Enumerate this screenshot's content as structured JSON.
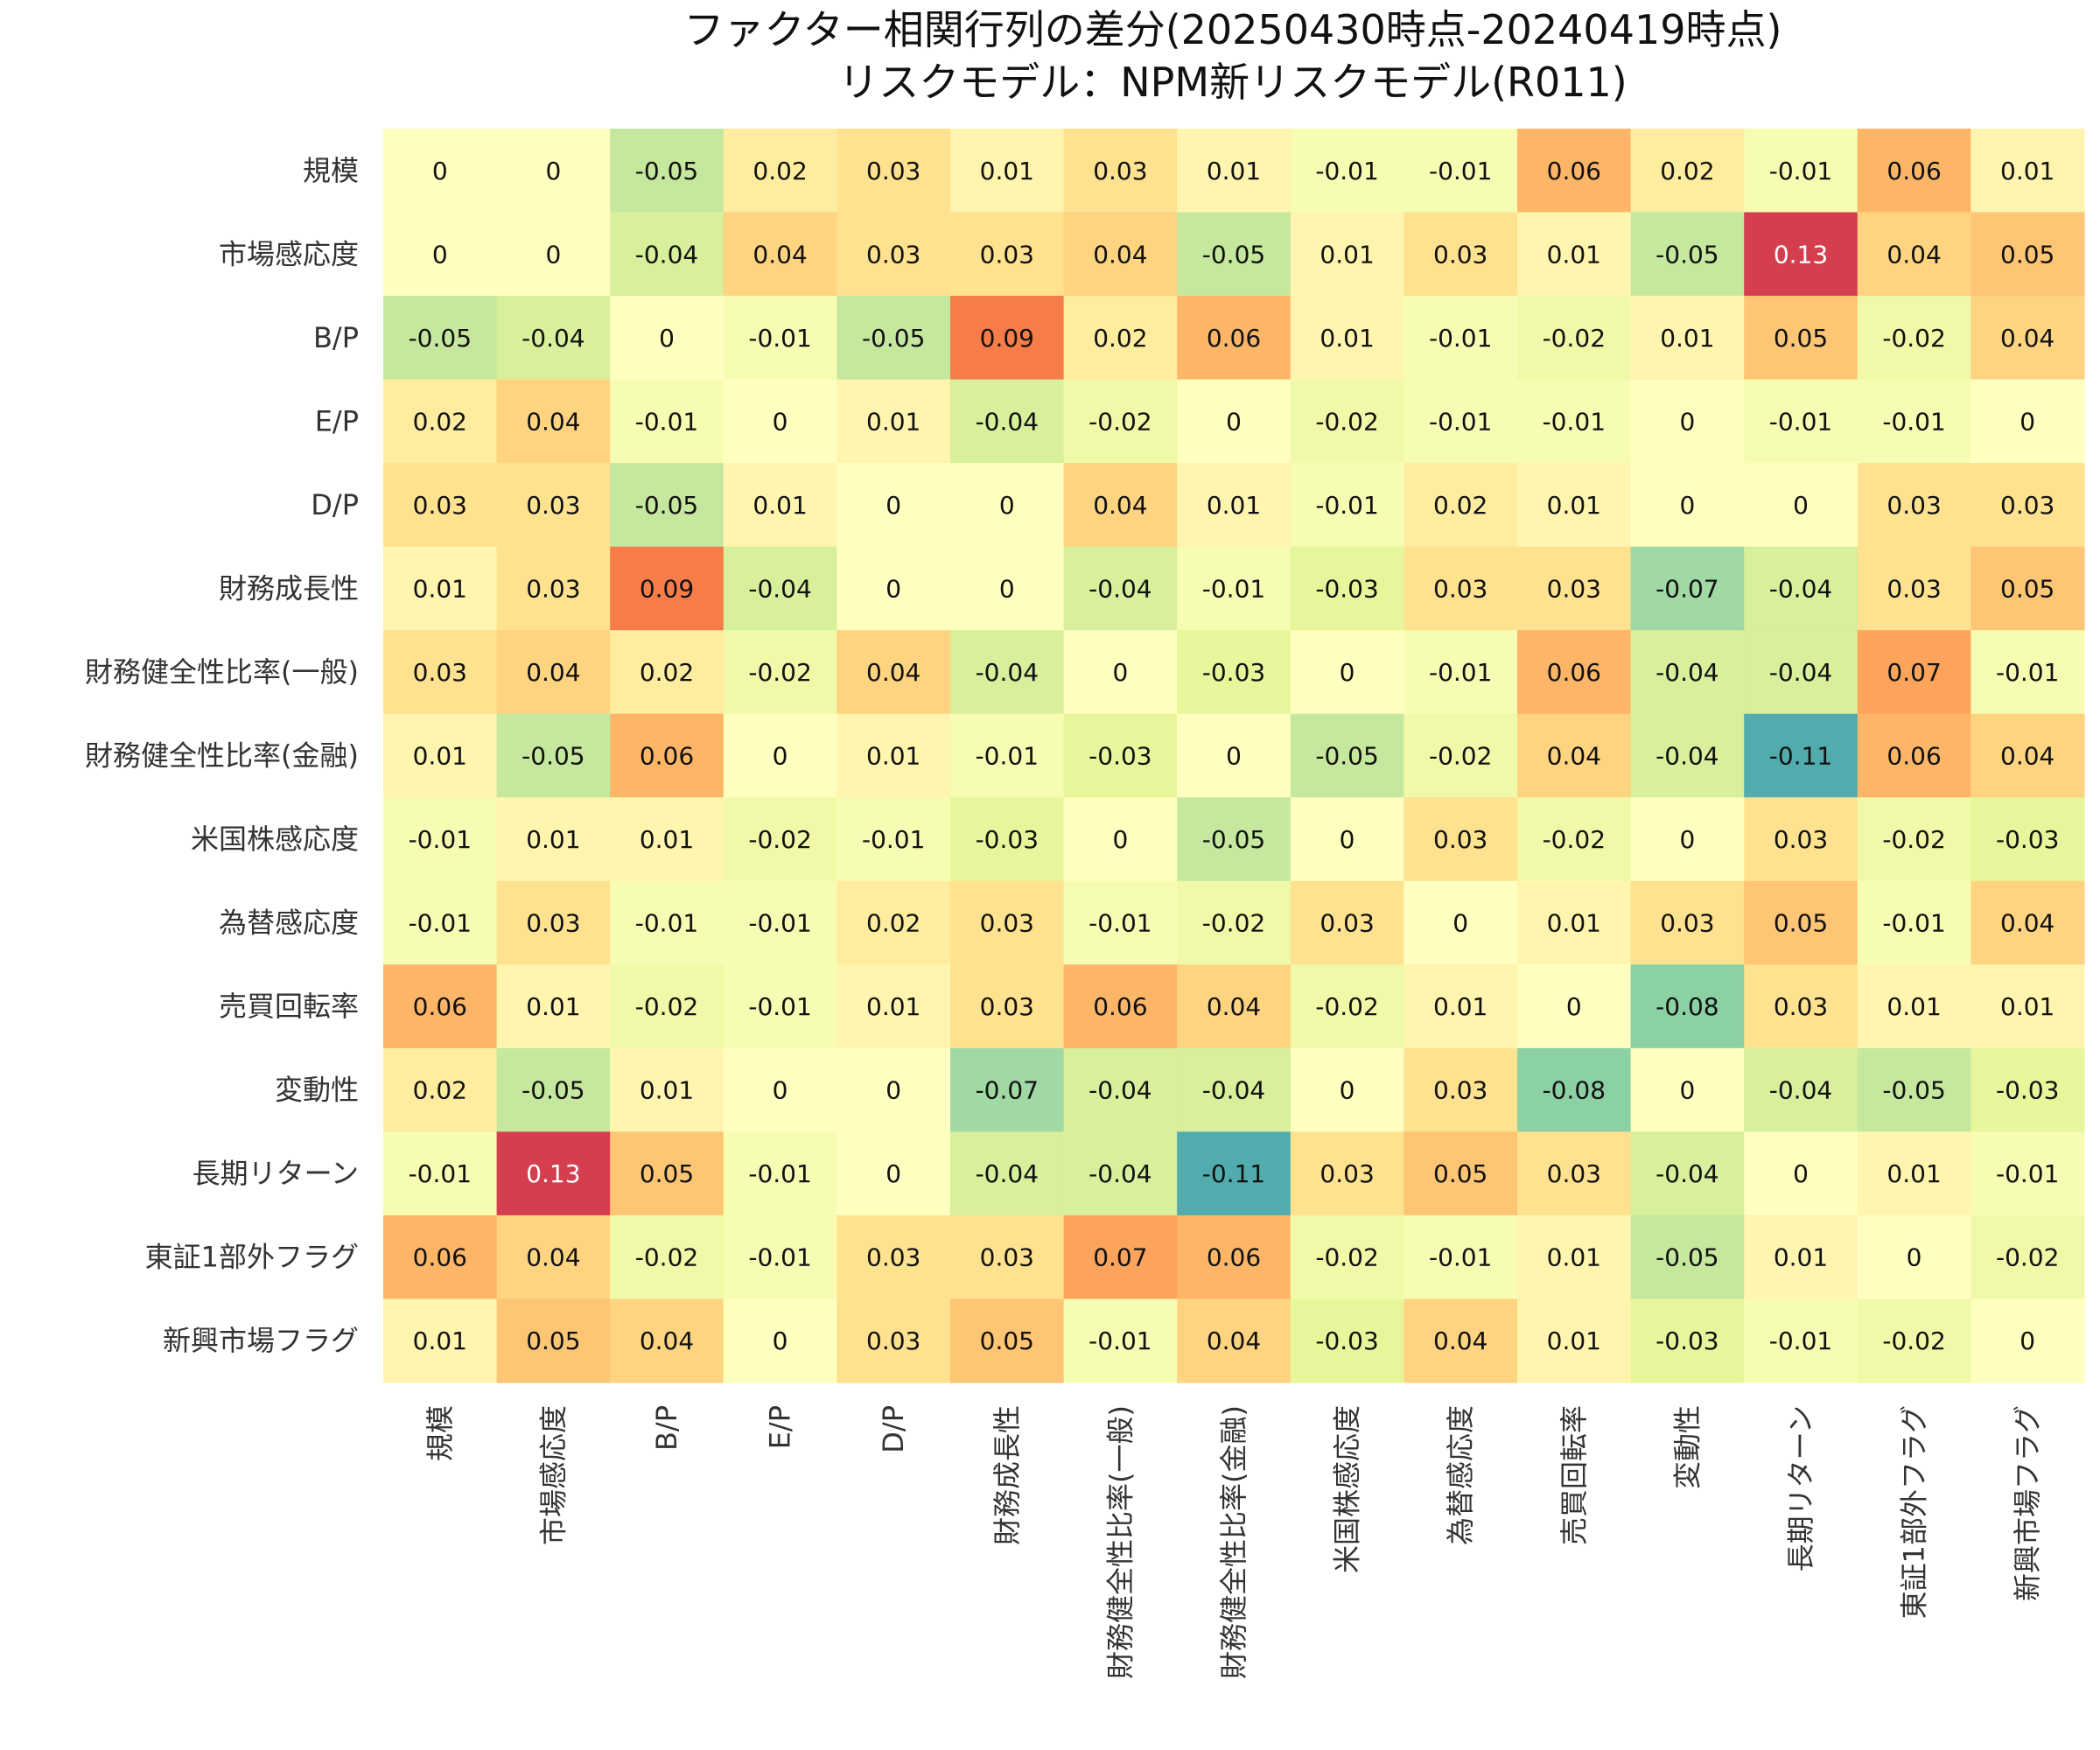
{
  "chart_data": {
    "type": "heatmap",
    "title_lines": [
      "ファクター相関行列の差分(20250430時点-20240419時点)",
      "リスクモデル：NPM新リスクモデル(R011)"
    ],
    "row_labels": [
      "規模",
      "市場感応度",
      "B/P",
      "E/P",
      "D/P",
      "財務成長性",
      "財務健全性比率(一般)",
      "財務健全性比率(金融)",
      "米国株感応度",
      "為替感応度",
      "売買回転率",
      "変動性",
      "長期リターン",
      "東証1部外フラグ",
      "新興市場フラグ"
    ],
    "col_labels": [
      "規模",
      "市場感応度",
      "B/P",
      "E/P",
      "D/P",
      "財務成長性",
      "財務健全性比率(一般)",
      "財務健全性比率(金融)",
      "米国株感応度",
      "為替感応度",
      "売買回転率",
      "変動性",
      "長期リターン",
      "東証1部外フラグ",
      "新興市場フラグ"
    ],
    "values": [
      [
        0,
        0,
        -0.05,
        0.02,
        0.03,
        0.01,
        0.03,
        0.01,
        -0.01,
        -0.01,
        0.06,
        0.02,
        -0.01,
        0.06,
        0.01
      ],
      [
        0,
        0,
        -0.04,
        0.04,
        0.03,
        0.03,
        0.04,
        -0.05,
        0.01,
        0.03,
        0.01,
        -0.05,
        0.13,
        0.04,
        0.05
      ],
      [
        -0.05,
        -0.04,
        0,
        -0.01,
        -0.05,
        0.09,
        0.02,
        0.06,
        0.01,
        -0.01,
        -0.02,
        0.01,
        0.05,
        -0.02,
        0.04
      ],
      [
        0.02,
        0.04,
        -0.01,
        0,
        0.01,
        -0.04,
        -0.02,
        0,
        -0.02,
        -0.01,
        -0.01,
        0,
        -0.01,
        -0.01,
        0
      ],
      [
        0.03,
        0.03,
        -0.05,
        0.01,
        0,
        0,
        0.04,
        0.01,
        -0.01,
        0.02,
        0.01,
        0,
        0,
        0.03,
        0.03
      ],
      [
        0.01,
        0.03,
        0.09,
        -0.04,
        0,
        0,
        -0.04,
        -0.01,
        -0.03,
        0.03,
        0.03,
        -0.07,
        -0.04,
        0.03,
        0.05
      ],
      [
        0.03,
        0.04,
        0.02,
        -0.02,
        0.04,
        -0.04,
        0,
        -0.03,
        0,
        -0.01,
        0.06,
        -0.04,
        -0.04,
        0.07,
        -0.01
      ],
      [
        0.01,
        -0.05,
        0.06,
        0,
        0.01,
        -0.01,
        -0.03,
        0,
        -0.05,
        -0.02,
        0.04,
        -0.04,
        -0.11,
        0.06,
        0.04
      ],
      [
        -0.01,
        0.01,
        0.01,
        -0.02,
        -0.01,
        -0.03,
        0,
        -0.05,
        0,
        0.03,
        -0.02,
        0,
        0.03,
        -0.02,
        -0.03
      ],
      [
        -0.01,
        0.03,
        -0.01,
        -0.01,
        0.02,
        0.03,
        -0.01,
        -0.02,
        0.03,
        0,
        0.01,
        0.03,
        0.05,
        -0.01,
        0.04
      ],
      [
        0.06,
        0.01,
        -0.02,
        -0.01,
        0.01,
        0.03,
        0.06,
        0.04,
        -0.02,
        0.01,
        0,
        -0.08,
        0.03,
        0.01,
        0.01
      ],
      [
        0.02,
        -0.05,
        0.01,
        0,
        0,
        -0.07,
        -0.04,
        -0.04,
        0,
        0.03,
        -0.08,
        0,
        -0.04,
        -0.05,
        -0.03
      ],
      [
        -0.01,
        0.13,
        0.05,
        -0.01,
        0,
        -0.04,
        -0.04,
        -0.11,
        0.03,
        0.05,
        0.03,
        -0.04,
        0,
        0.01,
        -0.01
      ],
      [
        0.06,
        0.04,
        -0.02,
        -0.01,
        0.03,
        0.03,
        0.07,
        0.06,
        -0.02,
        -0.01,
        0.01,
        -0.05,
        0.01,
        0,
        -0.02
      ],
      [
        0.01,
        0.05,
        0.04,
        0,
        0.03,
        0.05,
        -0.01,
        0.04,
        -0.03,
        0.04,
        0.01,
        -0.03,
        -0.01,
        -0.02,
        0
      ]
    ],
    "value_range": [
      -0.13,
      0.13
    ],
    "colormap": "Spectral_r",
    "colormap_stops": [
      "#3288bd",
      "#66c2a5",
      "#abdda4",
      "#e6f598",
      "#ffffbf",
      "#fee08b",
      "#fdae61",
      "#f46d43",
      "#d53e4f"
    ],
    "annotation_dark_text_color": "#111111",
    "annotation_light_text_color": "#ffffff",
    "grid": false,
    "colorbar": false
  }
}
